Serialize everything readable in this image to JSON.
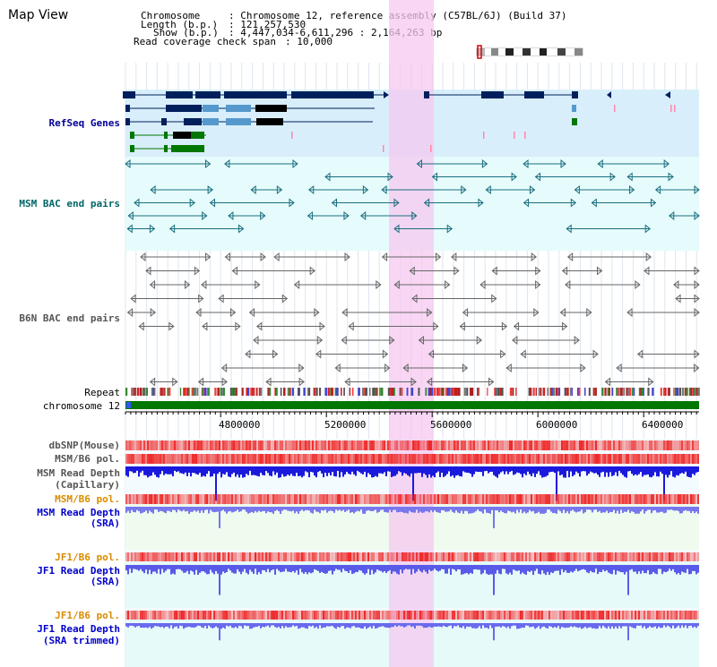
{
  "title": "Map View",
  "header": {
    "chromosome_key": "Chromosome",
    "chromosome_val": ": Chromosome 12, reference assembly (C57BL/6J) (Build 37)",
    "length_key": "Length (b.p.)",
    "length_val": ": 121,257,530",
    "show_key": "Show (b.p.)",
    "show_val": ": 4,447,034-6,611,296 : 2,164,263 bp",
    "span_key": "Read coverage check span",
    "span_val": ": 10,000"
  },
  "tracks": {
    "refseq": "RefSeq Genes",
    "msm_bac": "MSM BAC end pairs",
    "b6n_bac": "B6N BAC end pairs",
    "repeat": "Repeat",
    "chromosome": "chromosome 12",
    "dbsnp": "dbSNP(Mouse)",
    "msm_b6_pol_1": "MSM/B6 pol.",
    "msm_read_depth_cap_1": "MSM Read Depth",
    "msm_read_depth_cap_2": "(Capillary)",
    "msm_b6_pol_2": "MSM/B6 pol.",
    "msm_read_depth_sra_1": "MSM Read Depth",
    "msm_read_depth_sra_2": "(SRA)",
    "jf1_b6_pol_1": "JF1/B6 pol.",
    "jf1_read_depth_sra_1": "JF1 Read Depth",
    "jf1_read_depth_sra_2": "(SRA)",
    "jf1_b6_pol_2": "JF1/B6 pol.",
    "jf1_read_depth_trim_1": "JF1 Read Depth",
    "jf1_read_depth_trim_2": "(SRA trimmed)"
  },
  "axis_ticks": [
    "4800000",
    "5200000",
    "5600000",
    "6000000",
    "6400000"
  ],
  "colors": {
    "refseq_bg": "#d8eefa",
    "bac_bg": "#e6fcfc",
    "highlight": "#f5c8f0",
    "chromosome_bar": "#007700",
    "depth_blue": "#0000ee",
    "pol_red": "#ee3333"
  }
}
